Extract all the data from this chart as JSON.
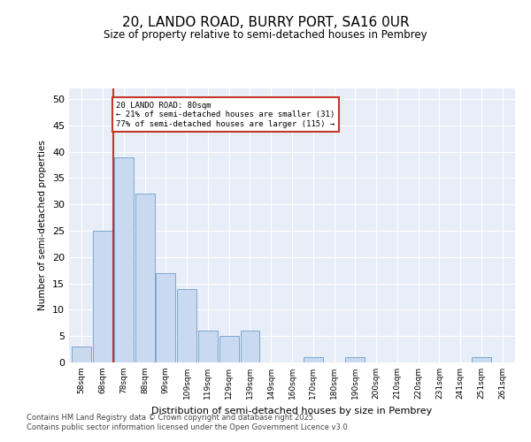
{
  "title1": "20, LANDO ROAD, BURRY PORT, SA16 0UR",
  "title2": "Size of property relative to semi-detached houses in Pembrey",
  "xlabel": "Distribution of semi-detached houses by size in Pembrey",
  "ylabel": "Number of semi-detached properties",
  "categories": [
    "58sqm",
    "68sqm",
    "78sqm",
    "88sqm",
    "99sqm",
    "109sqm",
    "119sqm",
    "129sqm",
    "139sqm",
    "149sqm",
    "160sqm",
    "170sqm",
    "180sqm",
    "190sqm",
    "200sqm",
    "210sqm",
    "220sqm",
    "231sqm",
    "241sqm",
    "251sqm",
    "261sqm"
  ],
  "values": [
    3,
    25,
    39,
    32,
    17,
    14,
    6,
    5,
    6,
    0,
    0,
    1,
    0,
    1,
    0,
    0,
    0,
    0,
    0,
    1,
    0
  ],
  "bar_color": "#c9d9f0",
  "bar_edge_color": "#7ca8d0",
  "highlight_color": "#c0392b",
  "annotation_title": "20 LANDO ROAD: 80sqm",
  "annotation_line1": "← 21% of semi-detached houses are smaller (31)",
  "annotation_line2": "77% of semi-detached houses are larger (115) →",
  "ylim": [
    0,
    52
  ],
  "yticks": [
    0,
    5,
    10,
    15,
    20,
    25,
    30,
    35,
    40,
    45,
    50
  ],
  "background_color": "#e8eef8",
  "footer1": "Contains HM Land Registry data © Crown copyright and database right 2025.",
  "footer2": "Contains public sector information licensed under the Open Government Licence v3.0."
}
